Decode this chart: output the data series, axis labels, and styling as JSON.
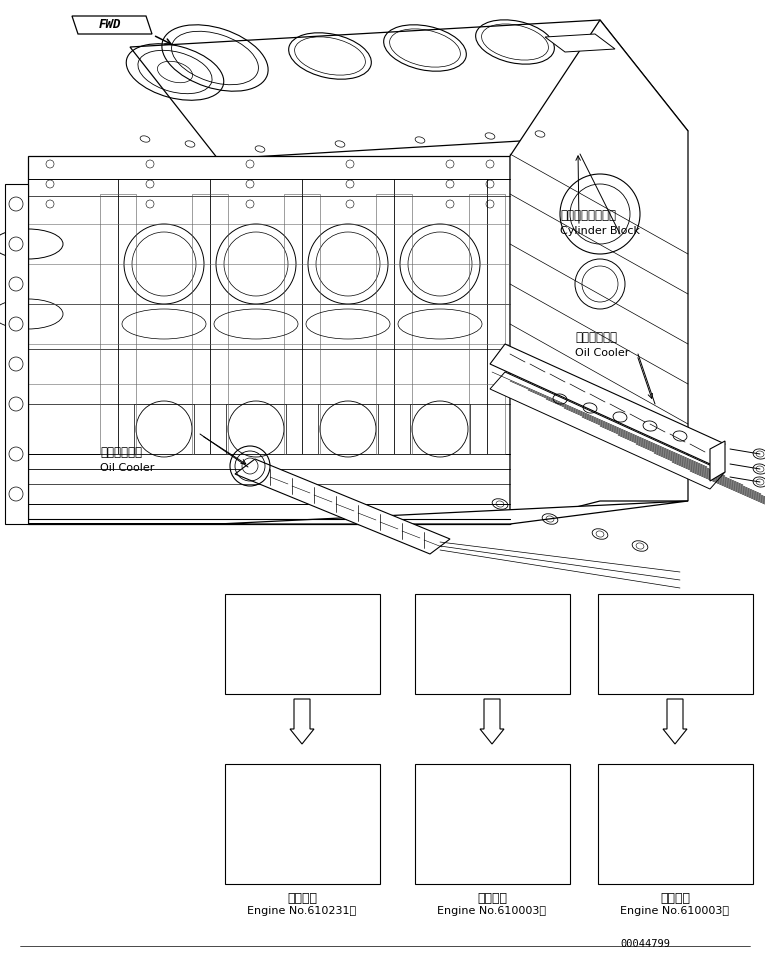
{
  "background_color": "#ffffff",
  "line_color": "#000000",
  "label_cylinder_block_jp": "シリンダブロック",
  "label_cylinder_block_en": "Cylinder Block",
  "label_oil_cooler_jp1": "オイルクーラ",
  "label_oil_cooler_en1": "Oil Cooler",
  "label_oil_cooler_jp2": "オイルクーラ",
  "label_oil_cooler_en2": "Oil Cooler",
  "label_fwd": "FWD",
  "bottom_labels_jp": [
    "適用号機",
    "適用号機",
    "適用号機"
  ],
  "bottom_labels_en": [
    "Engine No.610231～",
    "Engine No.610003～",
    "Engine No.610003～"
  ],
  "part_number": "00044799"
}
